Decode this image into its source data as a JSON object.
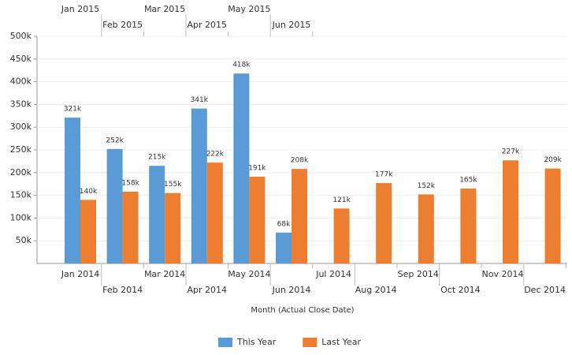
{
  "chart_data": {
    "type": "bar",
    "categories": [
      "Jan 2014",
      "Feb 2014",
      "Mar 2014",
      "Apr 2014",
      "May 2014",
      "Jun 2014",
      "Jul 2014",
      "Aug 2014",
      "Sep 2014",
      "Oct 2014",
      "Nov 2014",
      "Dec 2014"
    ],
    "top_categories": [
      "Jan 2015",
      "Feb 2015",
      "Mar 2015",
      "Apr 2015",
      "May 2015",
      "Jun 2015"
    ],
    "x_label": "Month (Actual Close Date)",
    "series": [
      {
        "name": "This Year",
        "color": "#5b9bd5",
        "values": [
          321000,
          252000,
          215000,
          341000,
          418000,
          68000,
          null,
          null,
          null,
          null,
          null,
          null
        ],
        "value_labels": [
          "321k",
          "252k",
          "215k",
          "341k",
          "418k",
          "68k",
          null,
          null,
          null,
          null,
          null,
          null
        ]
      },
      {
        "name": "Last Year",
        "color": "#ed7d31",
        "values": [
          140000,
          158000,
          155000,
          222000,
          191000,
          208000,
          121000,
          177000,
          152000,
          165000,
          227000,
          209000
        ],
        "value_labels": [
          "140k",
          "158k",
          "155k",
          "222k",
          "191k",
          "208k",
          "121k",
          "177k",
          "152k",
          "165k",
          "227k",
          "209k"
        ]
      }
    ],
    "ylim": [
      0,
      500000
    ],
    "yticks": [
      {
        "value": 50000,
        "label": "50k"
      },
      {
        "value": 100000,
        "label": "100k"
      },
      {
        "value": 150000,
        "label": "150k"
      },
      {
        "value": 200000,
        "label": "200k"
      },
      {
        "value": 250000,
        "label": "250k"
      },
      {
        "value": 300000,
        "label": "300k"
      },
      {
        "value": 350000,
        "label": "350k"
      },
      {
        "value": 400000,
        "label": "400k"
      },
      {
        "value": 450000,
        "label": "450k"
      },
      {
        "value": 500000,
        "label": "500k"
      }
    ],
    "grid": true
  }
}
